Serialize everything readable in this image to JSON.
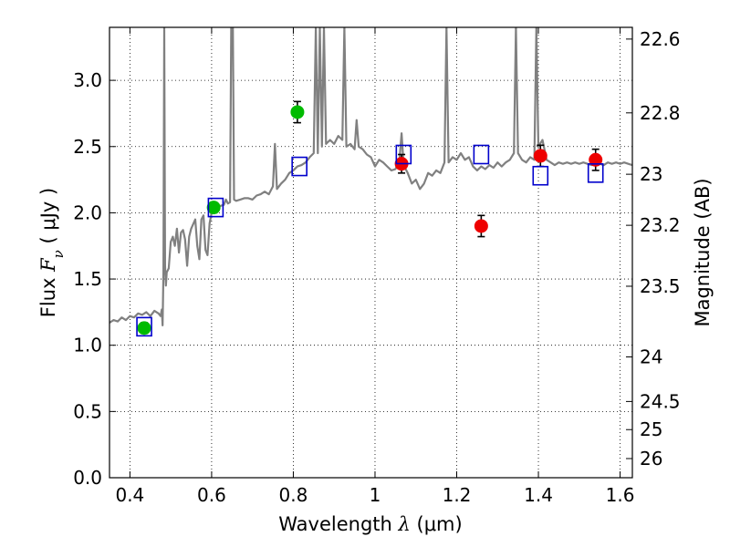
{
  "chart_data": {
    "type": "scatter",
    "title": "",
    "xlabel": {
      "prefix": "Wavelength  ",
      "symbol": "λ",
      "suffix": " (μm)"
    },
    "ylabel": {
      "prefix": "Flux  ",
      "symbol": "F",
      "subscript": "ν",
      "suffix": "  ( μJy )"
    },
    "y2label": "Magnitude (AB)",
    "xlim": [
      0.35,
      1.63
    ],
    "ylim": [
      0.0,
      3.4
    ],
    "grid": true,
    "xticks": [
      0.4,
      0.6,
      0.8,
      1.0,
      1.2,
      1.4,
      1.6
    ],
    "xtick_labels": [
      "0.4",
      "0.6",
      "0.8",
      "1",
      "1.2",
      "1.4",
      "1.6"
    ],
    "yticks": [
      0.0,
      0.5,
      1.0,
      1.5,
      2.0,
      2.5,
      3.0
    ],
    "ytick_labels": [
      "0.0",
      "0.5",
      "1.0",
      "1.5",
      "2.0",
      "2.5",
      "3.0"
    ],
    "y2ticks": [
      {
        "label": "22.6",
        "mag": 22.6
      },
      {
        "label": "22.8",
        "mag": 22.8
      },
      {
        "label": "23",
        "mag": 23.0
      },
      {
        "label": "23.2",
        "mag": 23.2
      },
      {
        "label": "23.5",
        "mag": 23.5
      },
      {
        "label": "24",
        "mag": 24.0
      },
      {
        "label": "24.5",
        "mag": 24.5
      },
      {
        "label": "25",
        "mag": 25.0
      },
      {
        "label": "26",
        "mag": 26.0
      }
    ],
    "colors": {
      "spectrum": "#808080",
      "green": "#00bb00",
      "red": "#ee0000",
      "model": "#0000cc",
      "error": "#000000"
    },
    "series": [
      {
        "kind": "line",
        "color": "#808080",
        "points": [
          [
            0.35,
            1.17
          ],
          [
            0.36,
            1.19
          ],
          [
            0.37,
            1.18
          ],
          [
            0.38,
            1.21
          ],
          [
            0.39,
            1.19
          ],
          [
            0.4,
            1.22
          ],
          [
            0.41,
            1.21
          ],
          [
            0.42,
            1.24
          ],
          [
            0.43,
            1.23
          ],
          [
            0.44,
            1.25
          ],
          [
            0.45,
            1.22
          ],
          [
            0.46,
            1.26
          ],
          [
            0.47,
            1.24
          ],
          [
            0.475,
            1.22
          ],
          [
            0.478,
            1.27
          ],
          [
            0.48,
            1.15
          ],
          [
            0.482,
            1.55
          ],
          [
            0.484,
            3.4
          ],
          [
            0.486,
            1.6
          ],
          [
            0.488,
            1.45
          ],
          [
            0.49,
            1.55
          ],
          [
            0.495,
            1.58
          ],
          [
            0.5,
            1.78
          ],
          [
            0.505,
            1.82
          ],
          [
            0.51,
            1.75
          ],
          [
            0.515,
            1.88
          ],
          [
            0.52,
            1.7
          ],
          [
            0.525,
            1.85
          ],
          [
            0.53,
            1.87
          ],
          [
            0.535,
            1.8
          ],
          [
            0.54,
            1.6
          ],
          [
            0.545,
            1.82
          ],
          [
            0.55,
            1.88
          ],
          [
            0.56,
            1.95
          ],
          [
            0.565,
            1.75
          ],
          [
            0.57,
            1.65
          ],
          [
            0.575,
            1.95
          ],
          [
            0.58,
            1.98
          ],
          [
            0.585,
            1.72
          ],
          [
            0.59,
            1.68
          ],
          [
            0.595,
            1.92
          ],
          [
            0.6,
            2.0
          ],
          [
            0.61,
            2.02
          ],
          [
            0.62,
            2.05
          ],
          [
            0.63,
            2.06
          ],
          [
            0.635,
            2.1
          ],
          [
            0.64,
            2.07
          ],
          [
            0.645,
            2.08
          ],
          [
            0.648,
            3.4
          ],
          [
            0.652,
            3.4
          ],
          [
            0.655,
            2.1
          ],
          [
            0.66,
            2.09
          ],
          [
            0.67,
            2.1
          ],
          [
            0.68,
            2.11
          ],
          [
            0.69,
            2.11
          ],
          [
            0.7,
            2.1
          ],
          [
            0.71,
            2.13
          ],
          [
            0.72,
            2.14
          ],
          [
            0.73,
            2.16
          ],
          [
            0.74,
            2.14
          ],
          [
            0.75,
            2.2
          ],
          [
            0.755,
            2.52
          ],
          [
            0.76,
            2.18
          ],
          [
            0.77,
            2.22
          ],
          [
            0.78,
            2.25
          ],
          [
            0.79,
            2.3
          ],
          [
            0.8,
            2.32
          ],
          [
            0.81,
            2.35
          ],
          [
            0.82,
            2.36
          ],
          [
            0.83,
            2.38
          ],
          [
            0.84,
            2.42
          ],
          [
            0.85,
            2.45
          ],
          [
            0.855,
            3.4
          ],
          [
            0.86,
            2.45
          ],
          [
            0.865,
            3.4
          ],
          [
            0.87,
            2.5
          ],
          [
            0.875,
            3.4
          ],
          [
            0.88,
            2.52
          ],
          [
            0.89,
            2.55
          ],
          [
            0.9,
            2.52
          ],
          [
            0.91,
            2.58
          ],
          [
            0.92,
            2.55
          ],
          [
            0.925,
            3.4
          ],
          [
            0.93,
            2.5
          ],
          [
            0.94,
            2.52
          ],
          [
            0.95,
            2.48
          ],
          [
            0.955,
            2.7
          ],
          [
            0.96,
            2.5
          ],
          [
            0.97,
            2.48
          ],
          [
            0.98,
            2.44
          ],
          [
            0.99,
            2.42
          ],
          [
            1.0,
            2.35
          ],
          [
            1.01,
            2.4
          ],
          [
            1.02,
            2.38
          ],
          [
            1.03,
            2.35
          ],
          [
            1.04,
            2.32
          ],
          [
            1.05,
            2.33
          ],
          [
            1.06,
            2.4
          ],
          [
            1.065,
            2.6
          ],
          [
            1.07,
            2.36
          ],
          [
            1.08,
            2.3
          ],
          [
            1.09,
            2.22
          ],
          [
            1.1,
            2.25
          ],
          [
            1.11,
            2.18
          ],
          [
            1.12,
            2.22
          ],
          [
            1.13,
            2.3
          ],
          [
            1.14,
            2.28
          ],
          [
            1.15,
            2.32
          ],
          [
            1.16,
            2.3
          ],
          [
            1.17,
            2.38
          ],
          [
            1.175,
            3.4
          ],
          [
            1.18,
            2.38
          ],
          [
            1.19,
            2.42
          ],
          [
            1.2,
            2.4
          ],
          [
            1.21,
            2.45
          ],
          [
            1.22,
            2.4
          ],
          [
            1.23,
            2.42
          ],
          [
            1.24,
            2.35
          ],
          [
            1.25,
            2.32
          ],
          [
            1.26,
            2.35
          ],
          [
            1.27,
            2.33
          ],
          [
            1.28,
            2.36
          ],
          [
            1.29,
            2.34
          ],
          [
            1.3,
            2.38
          ],
          [
            1.31,
            2.35
          ],
          [
            1.32,
            2.38
          ],
          [
            1.33,
            2.4
          ],
          [
            1.34,
            2.45
          ],
          [
            1.345,
            3.4
          ],
          [
            1.35,
            2.45
          ],
          [
            1.36,
            2.4
          ],
          [
            1.37,
            2.38
          ],
          [
            1.38,
            2.42
          ],
          [
            1.39,
            2.4
          ],
          [
            1.395,
            3.4
          ],
          [
            1.4,
            2.5
          ],
          [
            1.41,
            2.55
          ],
          [
            1.42,
            2.4
          ],
          [
            1.43,
            2.38
          ],
          [
            1.44,
            2.36
          ],
          [
            1.45,
            2.38
          ],
          [
            1.46,
            2.37
          ],
          [
            1.47,
            2.38
          ],
          [
            1.48,
            2.37
          ],
          [
            1.49,
            2.38
          ],
          [
            1.5,
            2.37
          ],
          [
            1.51,
            2.38
          ],
          [
            1.52,
            2.37
          ],
          [
            1.53,
            2.36
          ],
          [
            1.54,
            2.38
          ],
          [
            1.55,
            2.37
          ],
          [
            1.56,
            2.36
          ],
          [
            1.57,
            2.38
          ],
          [
            1.58,
            2.37
          ],
          [
            1.59,
            2.38
          ],
          [
            1.6,
            2.37
          ],
          [
            1.61,
            2.38
          ],
          [
            1.62,
            2.37
          ],
          [
            1.63,
            2.36
          ]
        ]
      },
      {
        "kind": "points",
        "marker": "circle",
        "color": "#00bb00",
        "points": [
          {
            "x": 0.435,
            "y": 1.13,
            "err": 0.04
          },
          {
            "x": 0.605,
            "y": 2.04,
            "err": 0.04
          },
          {
            "x": 0.81,
            "y": 2.76,
            "err": 0.08
          }
        ]
      },
      {
        "kind": "points",
        "marker": "circle",
        "color": "#ee0000",
        "points": [
          {
            "x": 1.065,
            "y": 2.37,
            "err": 0.07
          },
          {
            "x": 1.26,
            "y": 1.9,
            "err": 0.08
          },
          {
            "x": 1.405,
            "y": 2.43,
            "err": 0.08
          },
          {
            "x": 1.54,
            "y": 2.4,
            "err": 0.08
          }
        ]
      },
      {
        "kind": "points",
        "marker": "square",
        "color": "#0000cc",
        "points": [
          {
            "x": 0.435,
            "y": 1.14
          },
          {
            "x": 0.61,
            "y": 2.04
          },
          {
            "x": 0.815,
            "y": 2.35
          },
          {
            "x": 1.07,
            "y": 2.44
          },
          {
            "x": 1.26,
            "y": 2.44
          },
          {
            "x": 1.405,
            "y": 2.28
          },
          {
            "x": 1.54,
            "y": 2.3
          }
        ]
      }
    ]
  }
}
